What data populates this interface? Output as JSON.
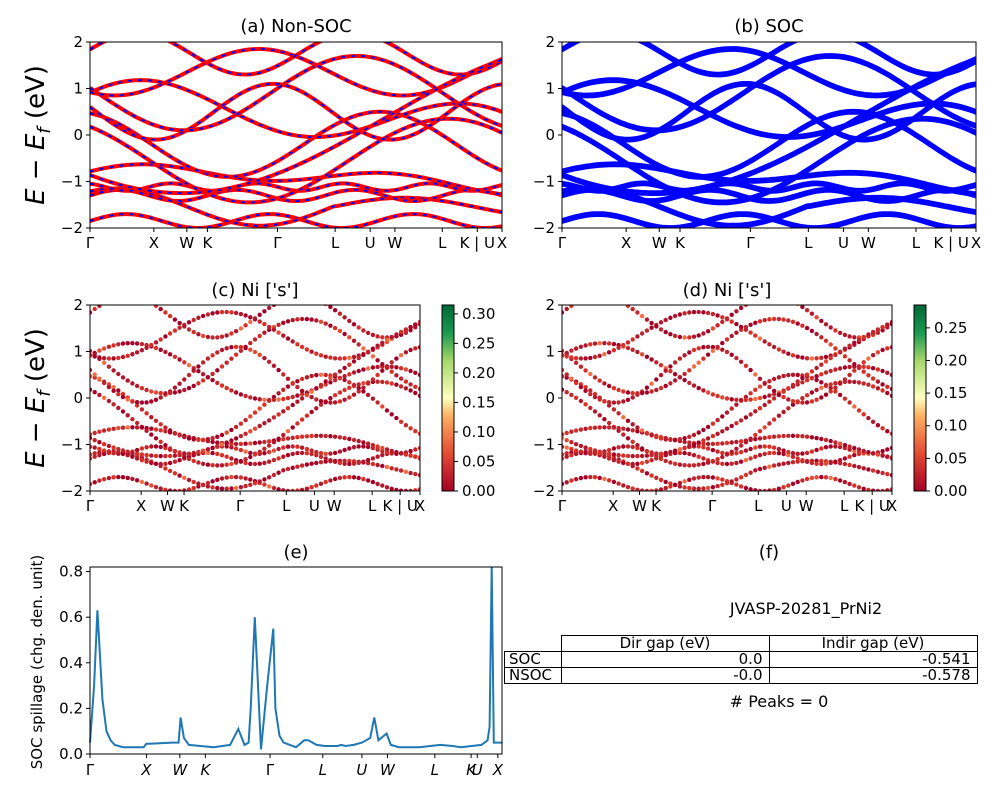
{
  "figure": {
    "ylabel_band": "E − E_f (eV)",
    "kpath_labels": [
      "Γ",
      "X",
      "W",
      "K",
      "Γ",
      "L",
      "U",
      "W",
      "L",
      "K | U",
      "X"
    ],
    "kpath_labels_italic": [
      "Γ",
      "X",
      "W",
      "K",
      "Γ",
      "L",
      "U",
      "W",
      "L",
      "K",
      "U",
      "X"
    ]
  },
  "panels": {
    "a": {
      "title": "(a) Non-SOC"
    },
    "b": {
      "title": "(b) SOC"
    },
    "c": {
      "title": "(c)  Ni ['s']",
      "colorbar_ticks": [
        "0.00",
        "0.05",
        "0.10",
        "0.15",
        "0.20",
        "0.25",
        "0.30"
      ]
    },
    "d": {
      "title": "(d) Ni ['s']",
      "colorbar_ticks": [
        "0.00",
        "0.05",
        "0.10",
        "0.15",
        "0.20",
        "0.25"
      ]
    },
    "e": {
      "title": "(e)",
      "ylabel": "SOC spillage (chg. den. unit)"
    },
    "f": {
      "title": "(f)",
      "material": "JVASP-20281_PrNi2",
      "table": {
        "headers": [
          "Dir gap (eV)",
          "Indir gap (eV)"
        ],
        "rows": [
          {
            "label": "SOC",
            "dir": "0.0",
            "indir": "-0.541"
          },
          {
            "label": "NSOC",
            "dir": "-0.0",
            "indir": "-0.578"
          }
        ]
      },
      "peaks": "# Peaks = 0"
    }
  },
  "chart_data": [
    {
      "type": "line",
      "title": "(a) Non-SOC",
      "ylabel": "E − E_f (eV)",
      "ylim": [
        -2,
        2
      ],
      "yticks": [
        -2,
        -1,
        0,
        1,
        2
      ],
      "xticks": [
        "Γ",
        "X",
        "W",
        "K",
        "Γ",
        "L",
        "U",
        "W",
        "L",
        "K | U",
        "X"
      ],
      "colors": [
        "#ff0000",
        "#0000ff"
      ],
      "note": "band structure, red solid with blue dashed overlay"
    },
    {
      "type": "line",
      "title": "(b) SOC",
      "ylabel": "",
      "ylim": [
        -2,
        2
      ],
      "yticks": [
        -2,
        -1,
        0,
        1,
        2
      ],
      "xticks": [
        "Γ",
        "X",
        "W",
        "K",
        "Γ",
        "L",
        "U",
        "W",
        "L",
        "K | U",
        "X"
      ],
      "colors": [
        "#0000ff"
      ]
    },
    {
      "type": "scatter",
      "title": "(c)  Ni ['s']",
      "ylim": [
        -2,
        2
      ],
      "colorbar_range": [
        0.0,
        0.31
      ],
      "colormap": "RdYlGn"
    },
    {
      "type": "scatter",
      "title": "(d) Ni ['s']",
      "ylim": [
        -2,
        2
      ],
      "colorbar_range": [
        0.0,
        0.28
      ],
      "colormap": "RdYlGn"
    },
    {
      "type": "line",
      "title": "(e)",
      "ylabel": "SOC spillage (chg. den. unit)",
      "ylim": [
        0,
        0.82
      ],
      "yticks": [
        0.0,
        0.2,
        0.4,
        0.6,
        0.8
      ],
      "xticks": [
        "Γ",
        "X",
        "W",
        "K",
        "Γ",
        "L",
        "U",
        "W",
        "L",
        "K",
        "U",
        "X"
      ],
      "series": [
        {
          "color": "#1f77b4",
          "x": [
            0,
            0.01,
            0.018,
            0.022,
            0.03,
            0.04,
            0.05,
            0.06,
            0.08,
            0.1,
            0.13,
            0.137,
            0.145,
            0.2,
            0.215,
            0.22,
            0.228,
            0.24,
            0.3,
            0.34,
            0.36,
            0.375,
            0.385,
            0.39,
            0.4,
            0.415,
            0.43,
            0.445,
            0.45,
            0.46,
            0.47,
            0.5,
            0.52,
            0.53,
            0.55,
            0.57,
            0.6,
            0.61,
            0.62,
            0.64,
            0.66,
            0.68,
            0.69,
            0.7,
            0.72,
            0.73,
            0.75,
            0.8,
            0.85,
            0.88,
            0.9,
            0.95,
            0.965,
            0.97,
            0.975,
            0.98,
            0.99,
            1.0
          ],
          "y": [
            0.05,
            0.3,
            0.63,
            0.5,
            0.24,
            0.1,
            0.06,
            0.04,
            0.03,
            0.03,
            0.03,
            0.045,
            0.045,
            0.05,
            0.05,
            0.16,
            0.07,
            0.04,
            0.03,
            0.04,
            0.11,
            0.04,
            0.05,
            0.2,
            0.6,
            0.02,
            0.3,
            0.55,
            0.2,
            0.08,
            0.05,
            0.03,
            0.06,
            0.06,
            0.04,
            0.035,
            0.035,
            0.04,
            0.035,
            0.04,
            0.05,
            0.07,
            0.16,
            0.06,
            0.09,
            0.04,
            0.03,
            0.03,
            0.04,
            0.035,
            0.03,
            0.04,
            0.06,
            0.12,
            0.82,
            0.05,
            0.05,
            0.05
          ]
        }
      ]
    }
  ]
}
